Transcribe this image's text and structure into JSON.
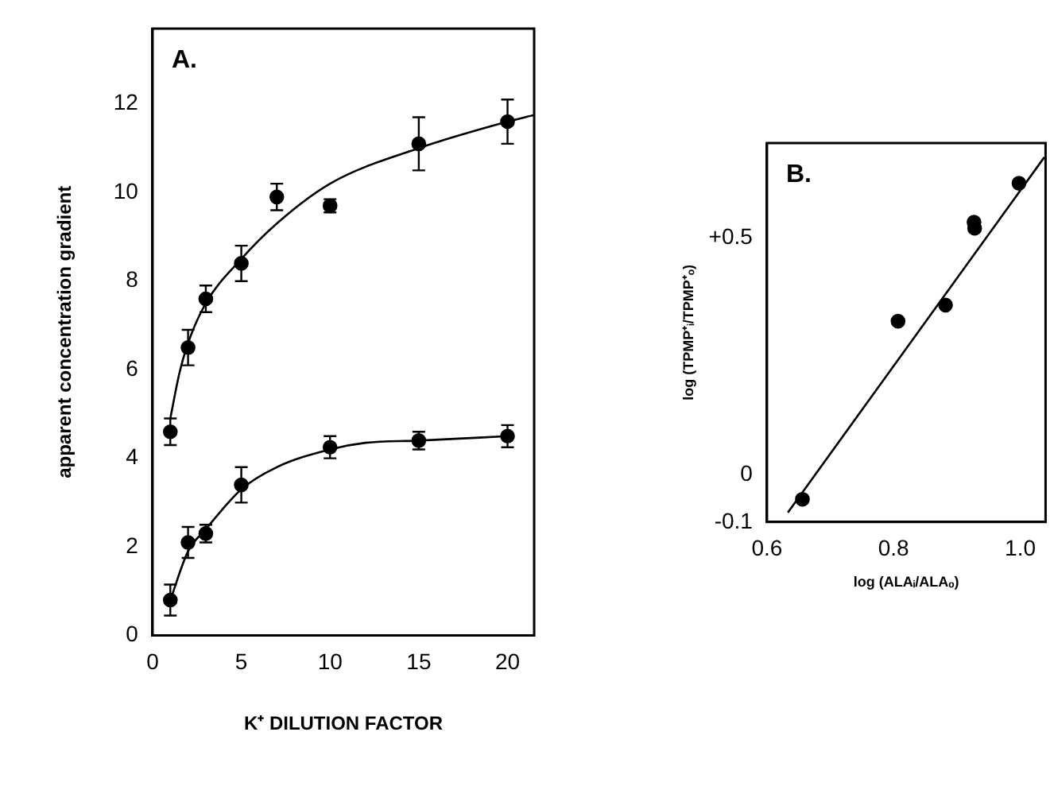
{
  "chart_data": [
    {
      "type": "scatter",
      "annotations": [
        "A."
      ],
      "xlabel": "K⁺ DILUTION FACTOR",
      "ylabel": "apparent concentration gradient",
      "xlim": [
        0,
        21.5
      ],
      "ylim": [
        0,
        13.7
      ],
      "xticks": [
        0,
        5,
        10,
        15,
        20
      ],
      "yticks": [
        0,
        2,
        4,
        6,
        8,
        10,
        12
      ],
      "grid": false,
      "legend": false,
      "marker": "circle",
      "series": [
        {
          "type": "scatter",
          "color": "#000000",
          "x": [
            1,
            2,
            3,
            5,
            7,
            10,
            15,
            20
          ],
          "values": [
            4.6,
            6.5,
            7.6,
            8.4,
            9.9,
            9.7,
            11.1,
            11.6
          ],
          "errors": [
            0.3,
            0.4,
            0.3,
            0.4,
            0.3,
            0.15,
            0.6,
            0.5
          ]
        },
        {
          "type": "scatter",
          "color": "#000000",
          "x": [
            1,
            2,
            3,
            5,
            10,
            15,
            20
          ],
          "values": [
            0.8,
            2.1,
            2.3,
            3.4,
            4.25,
            4.4,
            4.5
          ],
          "errors": [
            0.35,
            0.35,
            0.2,
            0.4,
            0.25,
            0.2,
            0.25
          ]
        },
        {
          "type": "line",
          "color": "#000000",
          "marker": "none",
          "x": [
            1,
            1.5,
            2,
            3,
            5,
            7,
            10,
            15,
            20,
            21.5
          ],
          "values": [
            4.9,
            5.9,
            6.6,
            7.5,
            8.5,
            9.3,
            10.2,
            11.0,
            11.6,
            11.75
          ]
        },
        {
          "type": "line",
          "color": "#000000",
          "marker": "none",
          "x": [
            1,
            2,
            3,
            5,
            7,
            10,
            12,
            15,
            20
          ],
          "values": [
            0.8,
            1.9,
            2.4,
            3.3,
            3.8,
            4.2,
            4.35,
            4.4,
            4.5
          ]
        }
      ]
    },
    {
      "type": "scatter",
      "annotations": [
        "B."
      ],
      "xlabel": "log (ALAᵢ/ALAₒ)",
      "ylabel": "log (TPMP⁺ᵢ/TPMP⁺ₒ)",
      "xlim": [
        0.6,
        1.04
      ],
      "ylim": [
        -0.1,
        0.7
      ],
      "xticks": [
        {
          "value": 0.6,
          "label": "0.6"
        },
        {
          "value": 0.8,
          "label": "0.8"
        },
        {
          "value": 1.0,
          "label": "1.0"
        }
      ],
      "yticks": [
        {
          "value": -0.1,
          "label": "-0.1"
        },
        0,
        {
          "value": 0.5,
          "label": "+0.5"
        }
      ],
      "grid": false,
      "legend": false,
      "marker": "circle",
      "series": [
        {
          "type": "scatter",
          "color": "#000000",
          "x": [
            0.656,
            0.807,
            0.882,
            0.927,
            0.928,
            0.998
          ],
          "values": [
            -0.052,
            0.324,
            0.358,
            0.533,
            0.52,
            0.615
          ]
        },
        {
          "type": "line",
          "color": "#000000",
          "marker": "none",
          "x": [
            0.633,
            1.038
          ],
          "values": [
            -0.08,
            0.67
          ]
        }
      ]
    }
  ]
}
